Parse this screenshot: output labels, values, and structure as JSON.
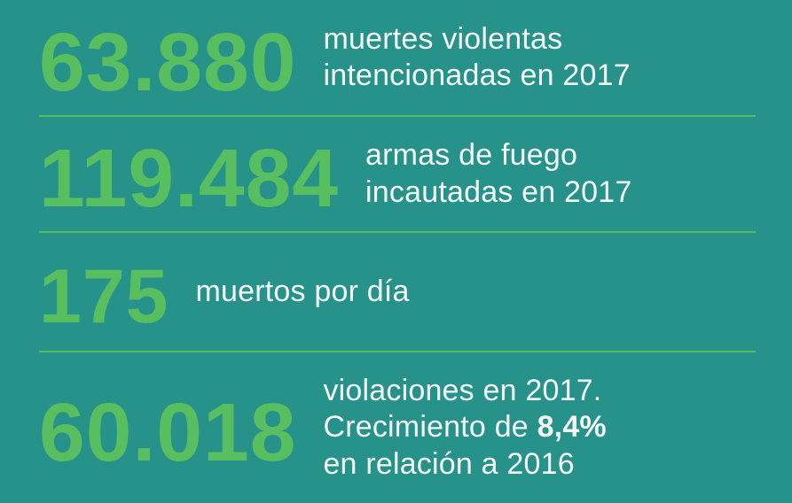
{
  "page": {
    "background_color": "#27928a",
    "number_color": "#58bf60",
    "divider_color": "#55bb5c",
    "text_color": "#f3f7f5"
  },
  "stats": [
    {
      "value": "63.880",
      "label": "muertes violentas\nintencionadas en 2017"
    },
    {
      "value": "119.484",
      "label": "armas de fuego\nincautadas en 2017"
    },
    {
      "value": "175",
      "label": "muertos por día"
    },
    {
      "value": "60.018",
      "label_before": "violaciones en 2017.\nCrecimiento de ",
      "label_bold": "8,4%",
      "label_after": "\nen relación a 2016"
    }
  ],
  "chart_data": {
    "type": "table",
    "title": "",
    "rows": [
      {
        "value": 63880,
        "display": "63.880",
        "label": "muertes violentas intencionadas en 2017"
      },
      {
        "value": 119484,
        "display": "119.484",
        "label": "armas de fuego incautadas en 2017"
      },
      {
        "value": 175,
        "display": "175",
        "label": "muertos por día"
      },
      {
        "value": 60018,
        "display": "60.018",
        "label": "violaciones en 2017. Crecimiento de 8,4% en relación a 2016",
        "growth_percent": "8,4%",
        "comparison_year": 2016
      }
    ],
    "year": 2017,
    "layout": "stat-panel, 4 rows separated by thin green divider lines, large green numbers left, white labels right"
  }
}
